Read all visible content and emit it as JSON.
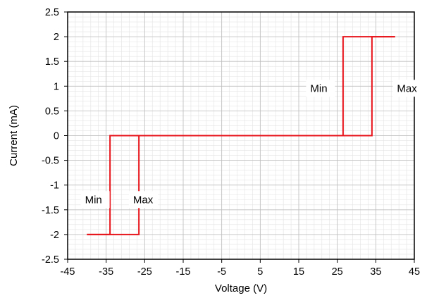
{
  "chart_data": {
    "type": "line",
    "title": "",
    "xlabel": "Voltage (V)",
    "ylabel": "Current (mA)",
    "xlim": [
      -45,
      45
    ],
    "ylim": [
      -2.5,
      2.5
    ],
    "x_ticks": [
      -45,
      -35,
      -25,
      -15,
      -5,
      5,
      15,
      25,
      35,
      45
    ],
    "y_ticks": [
      2.5,
      2,
      1.5,
      1,
      0.5,
      0,
      -0.5,
      -1,
      -1.5,
      -2,
      -2.5
    ],
    "x_tick_labels": [
      "-45",
      "-35",
      "-25",
      "-15",
      "-5",
      "5",
      "15",
      "25",
      "35",
      "45"
    ],
    "y_tick_labels": [
      "2.5",
      "2",
      "1.5",
      "1",
      "0.5",
      "0",
      "-0.5",
      "-1",
      "-1.5",
      "-2",
      "-2.5"
    ],
    "grid": true,
    "minor_grid_step_x": 2,
    "minor_grid_step_y": 0.1,
    "series": [
      {
        "color": "#e8141b",
        "x": [
          -40,
          -26.5,
          -26.5,
          26.5,
          26.5,
          40
        ],
        "y": [
          -2,
          -2,
          0,
          0,
          2,
          2
        ]
      },
      {
        "color": "#e8141b",
        "x": [
          -40,
          -34,
          -34,
          34,
          34,
          40
        ],
        "y": [
          -2,
          -2,
          0,
          0,
          2,
          2
        ]
      }
    ],
    "annotations": [
      {
        "text": "Min",
        "x": -40.5,
        "y": -1.35
      },
      {
        "text": "Max",
        "x": -28,
        "y": -1.35
      },
      {
        "text": "Min",
        "x": 18,
        "y": 0.9
      },
      {
        "text": "Max",
        "x": 40.5,
        "y": 0.9
      }
    ]
  }
}
